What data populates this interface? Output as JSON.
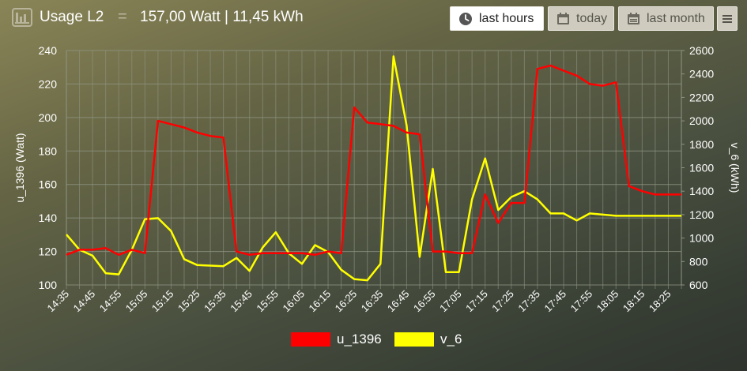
{
  "header": {
    "title": "Usage L2",
    "separator": "=",
    "summary": "157,00 Watt | 11,45 kWh"
  },
  "buttons": {
    "last_hours": "last hours",
    "today": "today",
    "last_month": "last month"
  },
  "colors": {
    "u_series": "#ff0000",
    "v_series": "#ffff00",
    "grid": "#8f9583",
    "axis_text": "#ffffff"
  },
  "chart_data": {
    "type": "line",
    "x": [
      "14:35",
      "14:40",
      "14:45",
      "14:50",
      "14:55",
      "15:00",
      "15:05",
      "15:10",
      "15:15",
      "15:20",
      "15:25",
      "15:30",
      "15:35",
      "15:40",
      "15:45",
      "15:50",
      "15:55",
      "16:00",
      "16:05",
      "16:10",
      "16:15",
      "16:20",
      "16:25",
      "16:30",
      "16:35",
      "16:40",
      "16:45",
      "16:50",
      "16:55",
      "17:00",
      "17:05",
      "17:10",
      "17:15",
      "17:20",
      "17:25",
      "17:30",
      "17:35",
      "17:40",
      "17:45",
      "17:50",
      "17:55",
      "18:00",
      "18:05",
      "18:10",
      "18:15",
      "18:20",
      "18:25",
      "18:30"
    ],
    "xticklabels": [
      "14:35",
      "14:45",
      "14:55",
      "15:05",
      "15:15",
      "15:25",
      "15:35",
      "15:45",
      "15:55",
      "16:05",
      "16:15",
      "16:25",
      "16:35",
      "16:45",
      "16:55",
      "17:05",
      "17:15",
      "17:25",
      "17:35",
      "17:45",
      "17:55",
      "18:05",
      "18:15",
      "18:25"
    ],
    "series": [
      {
        "name": "u_1396",
        "axis": "left",
        "values": [
          118,
          121,
          121,
          122,
          118,
          121,
          119,
          198,
          196,
          194,
          191,
          189,
          188,
          120,
          118,
          119,
          119,
          119,
          119,
          118,
          120,
          119,
          206,
          197,
          196,
          195,
          191,
          190,
          120,
          120,
          119,
          119,
          154,
          137,
          149,
          149,
          229,
          231,
          228,
          225,
          220,
          219,
          221,
          159,
          156,
          154,
          154,
          154
        ]
      },
      {
        "name": "v_6",
        "axis": "right",
        "values": [
          1030,
          900,
          850,
          700,
          690,
          900,
          1160,
          1170,
          1060,
          820,
          770,
          765,
          760,
          830,
          720,
          920,
          1050,
          870,
          780,
          940,
          880,
          730,
          650,
          640,
          780,
          2550,
          1960,
          840,
          1590,
          710,
          710,
          1330,
          1680,
          1240,
          1350,
          1400,
          1330,
          1210,
          1210,
          1150,
          1210,
          1200,
          1190,
          1190,
          1190,
          1190,
          1190,
          1190
        ]
      }
    ],
    "ylabel_left": "u_1396 (Watt)",
    "ylabel_right": "v_6 (kWh)",
    "ylim_left": [
      100,
      240
    ],
    "ylim_right": [
      600,
      2600
    ],
    "yticks_left": [
      "100",
      "120",
      "140",
      "160",
      "180",
      "200",
      "220",
      "240"
    ],
    "yticks_right": [
      "600",
      "800",
      "1000",
      "1200",
      "1400",
      "1600",
      "1800",
      "2000",
      "2200",
      "2400",
      "2600"
    ],
    "grid": true,
    "legend_position": "bottom-center"
  }
}
